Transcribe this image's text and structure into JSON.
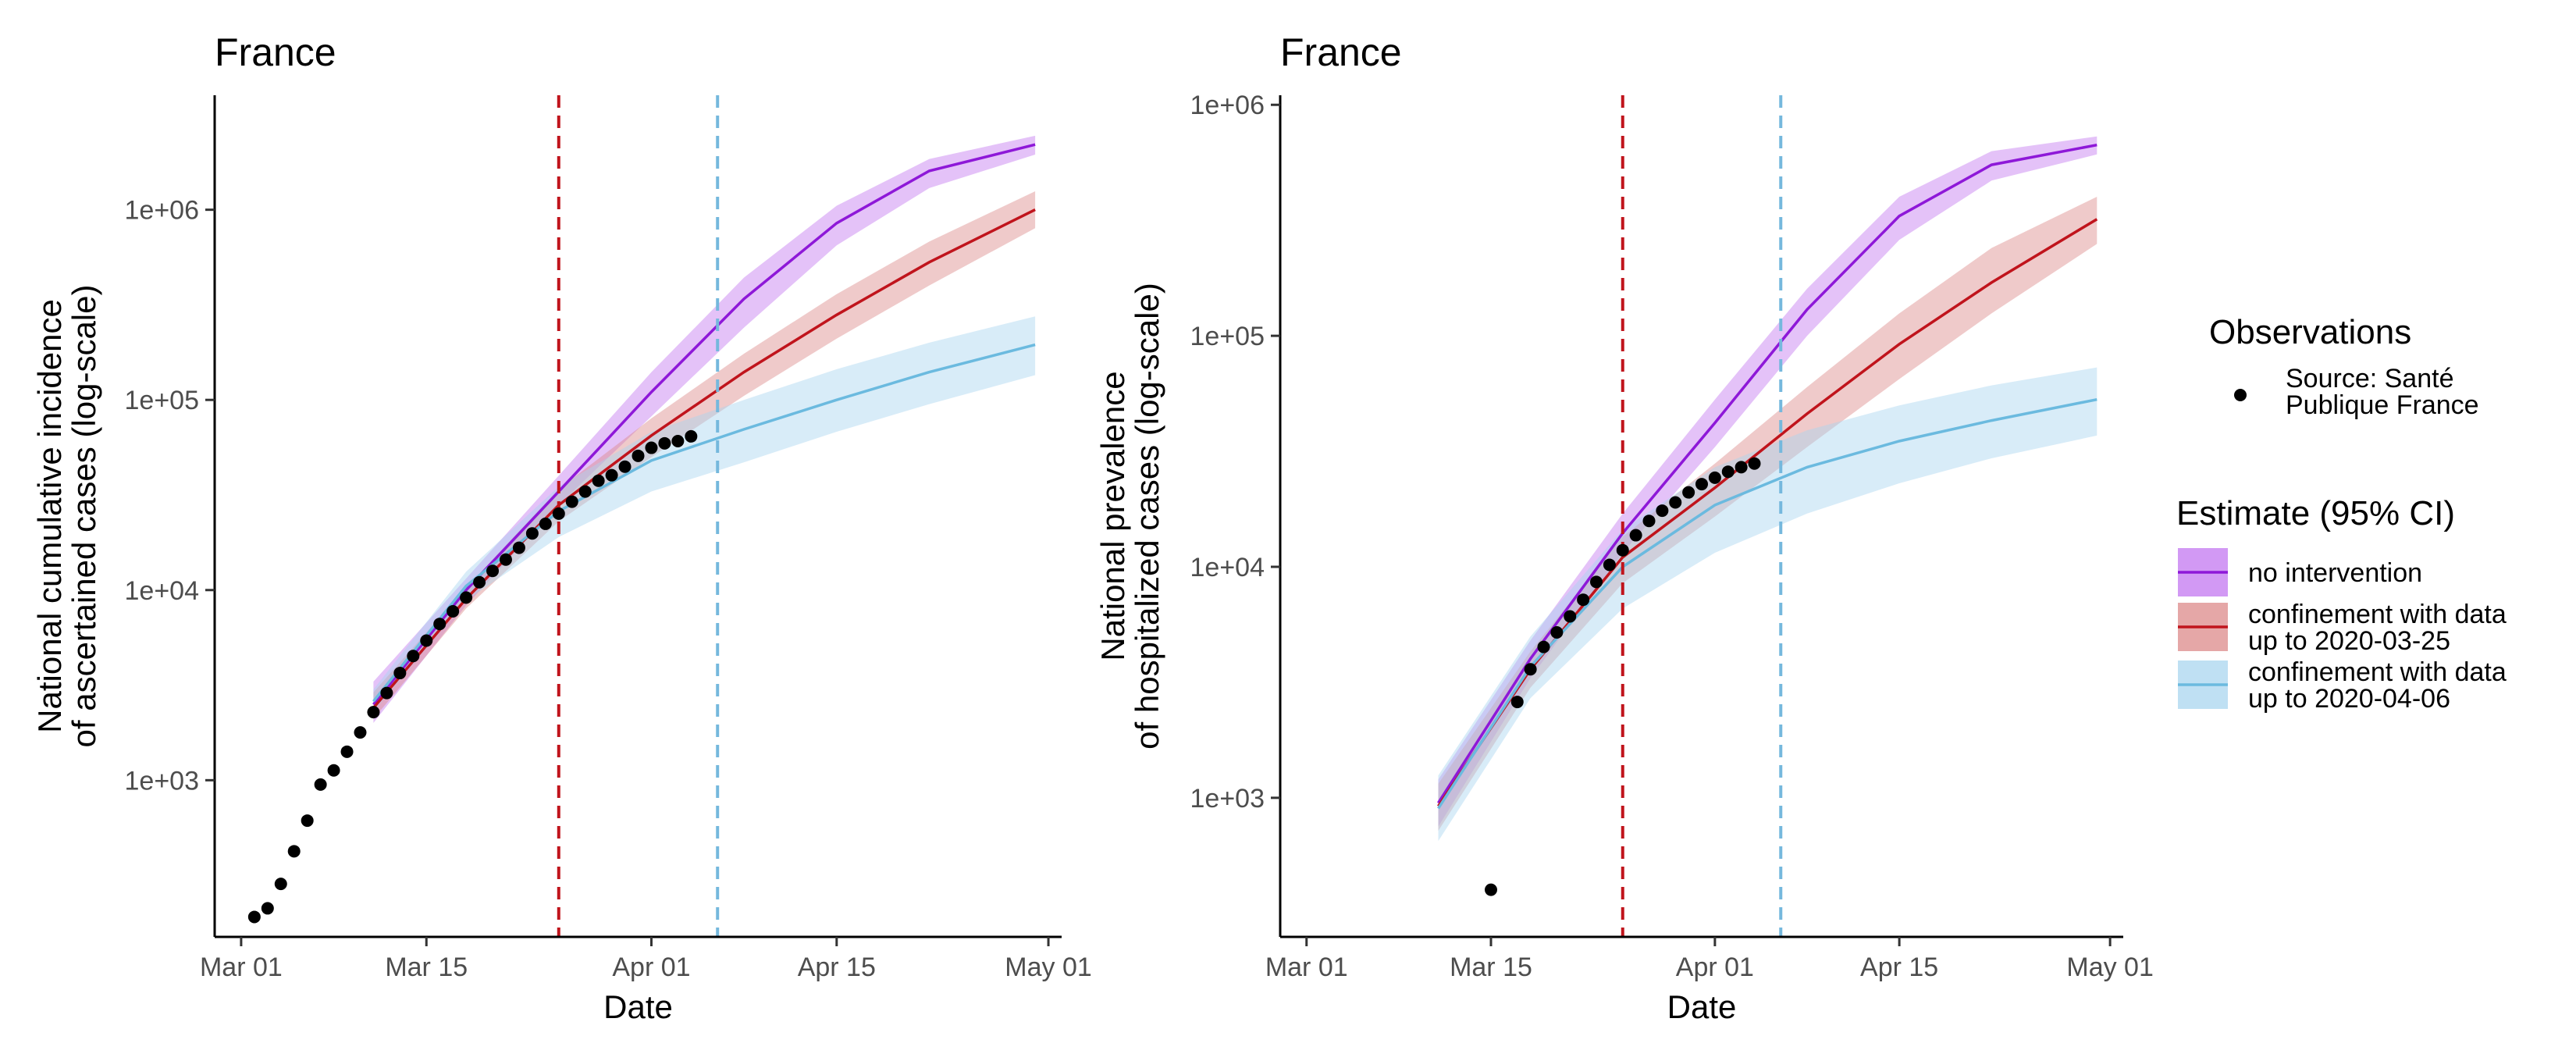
{
  "chart_data": [
    {
      "type": "line",
      "title": "France",
      "xlabel": "Date",
      "ylabel_lines": [
        "National cumulative incidence",
        "of ascertained cases (log-scale)"
      ],
      "yscale": "log10",
      "xlim": [
        "2020-02-28",
        "2020-05-02"
      ],
      "ylim": [
        150,
        4000000
      ],
      "x_ticks": [
        {
          "date": "2020-03-01",
          "label": "Mar 01"
        },
        {
          "date": "2020-03-15",
          "label": "Mar 15"
        },
        {
          "date": "2020-04-01",
          "label": "Apr 01"
        },
        {
          "date": "2020-04-15",
          "label": "Apr 15"
        },
        {
          "date": "2020-05-01",
          "label": "May 01"
        }
      ],
      "y_ticks": [
        {
          "value": 1000,
          "label": "1e+03"
        },
        {
          "value": 10000,
          "label": "1e+04"
        },
        {
          "value": 100000,
          "label": "1e+05"
        },
        {
          "value": 1000000,
          "label": "1e+06"
        }
      ],
      "vlines": [
        {
          "date": "2020-03-25",
          "color": "#c0141c"
        },
        {
          "date": "2020-04-06",
          "color": "#75b8dd"
        }
      ],
      "observations": {
        "series": "Source: Santé Publique France",
        "dates": [
          "2020-03-02",
          "2020-03-03",
          "2020-03-04",
          "2020-03-05",
          "2020-03-06",
          "2020-03-07",
          "2020-03-08",
          "2020-03-09",
          "2020-03-10",
          "2020-03-11",
          "2020-03-12",
          "2020-03-13",
          "2020-03-14",
          "2020-03-15",
          "2020-03-16",
          "2020-03-17",
          "2020-03-18",
          "2020-03-19",
          "2020-03-20",
          "2020-03-21",
          "2020-03-22",
          "2020-03-23",
          "2020-03-24",
          "2020-03-25",
          "2020-03-26",
          "2020-03-27",
          "2020-03-28",
          "2020-03-29",
          "2020-03-30",
          "2020-03-31",
          "2020-04-01",
          "2020-04-02",
          "2020-04-03",
          "2020-04-04"
        ],
        "values": [
          191,
          212,
          285,
          423,
          613,
          949,
          1126,
          1412,
          1784,
          2281,
          2876,
          3661,
          4499,
          5423,
          6633,
          7730,
          9134,
          10995,
          12612,
          14459,
          16689,
          19856,
          22304,
          25233,
          29155,
          32964,
          37575,
          40174,
          44550,
          50800,
          56000,
          59100,
          60700,
          64300
        ]
      },
      "series": [
        {
          "name": "no intervention",
          "color": "#8e18d8",
          "band_color": "#c377f0",
          "x": [
            "2020-03-11",
            "2020-03-18",
            "2020-03-25",
            "2020-04-01",
            "2020-04-08",
            "2020-04-15",
            "2020-04-22",
            "2020-04-30"
          ],
          "y": [
            2500,
            10000,
            33000,
            110000,
            340000,
            850000,
            1600000,
            2200000
          ],
          "lower": [
            2000,
            8300,
            28000,
            82000,
            240000,
            650000,
            1300000,
            1950000
          ],
          "upper": [
            3300,
            11500,
            40000,
            140000,
            440000,
            1050000,
            1850000,
            2450000
          ]
        },
        {
          "name": "confinement with data up to 2020-03-25",
          "color": "#c0141c",
          "band_color": "#dc8a8a",
          "x": [
            "2020-03-11",
            "2020-03-18",
            "2020-03-25",
            "2020-04-01",
            "2020-04-08",
            "2020-04-15",
            "2020-04-22",
            "2020-04-30"
          ],
          "y": [
            2400,
            9000,
            28000,
            65000,
            140000,
            280000,
            530000,
            1000000
          ],
          "lower": [
            2100,
            8000,
            23000,
            50000,
            105000,
            210000,
            400000,
            800000
          ],
          "upper": [
            2900,
            10300,
            34000,
            80000,
            175000,
            360000,
            680000,
            1250000
          ]
        },
        {
          "name": "confinement with data up to 2020-04-06",
          "color": "#6bbadf",
          "band_color": "#a9d5ef",
          "x": [
            "2020-03-11",
            "2020-03-18",
            "2020-03-25",
            "2020-04-01",
            "2020-04-08",
            "2020-04-15",
            "2020-04-22",
            "2020-04-30"
          ],
          "y": [
            2600,
            10500,
            26000,
            48000,
            70000,
            100000,
            140000,
            195000
          ],
          "lower": [
            2300,
            8800,
            19000,
            33000,
            47000,
            68000,
            95000,
            135000
          ],
          "upper": [
            3000,
            12500,
            35000,
            68000,
            100000,
            145000,
            200000,
            275000
          ]
        }
      ]
    },
    {
      "type": "line",
      "title": "France",
      "xlabel": "Date",
      "ylabel_lines": [
        "National prevalence",
        "of hospitalized cases (log-scale)"
      ],
      "yscale": "log10",
      "xlim": [
        "2020-02-28",
        "2020-05-02"
      ],
      "ylim": [
        250,
        1100000
      ],
      "x_ticks": [
        {
          "date": "2020-03-01",
          "label": "Mar 01"
        },
        {
          "date": "2020-03-15",
          "label": "Mar 15"
        },
        {
          "date": "2020-04-01",
          "label": "Apr 01"
        },
        {
          "date": "2020-04-15",
          "label": "Apr 15"
        },
        {
          "date": "2020-05-01",
          "label": "May 01"
        }
      ],
      "y_ticks": [
        {
          "value": 1000,
          "label": "1e+03"
        },
        {
          "value": 10000,
          "label": "1e+04"
        },
        {
          "value": 100000,
          "label": "1e+05"
        },
        {
          "value": 1000000,
          "label": "1e+06"
        }
      ],
      "vlines": [
        {
          "date": "2020-03-25",
          "color": "#c0141c"
        },
        {
          "date": "2020-04-06",
          "color": "#75b8dd"
        }
      ],
      "observations": {
        "series": "Source: Santé Publique France",
        "dates": [
          "2020-03-15",
          "2020-03-17",
          "2020-03-18",
          "2020-03-19",
          "2020-03-20",
          "2020-03-21",
          "2020-03-22",
          "2020-03-23",
          "2020-03-24",
          "2020-03-25",
          "2020-03-26",
          "2020-03-27",
          "2020-03-28",
          "2020-03-29",
          "2020-03-30",
          "2020-03-31",
          "2020-04-01",
          "2020-04-02",
          "2020-04-03",
          "2020-04-04"
        ],
        "values": [
          400,
          2600,
          3600,
          4500,
          5200,
          6100,
          7200,
          8600,
          10200,
          11800,
          13700,
          15800,
          17500,
          19000,
          21000,
          22800,
          24300,
          25800,
          27000,
          28000
        ]
      },
      "series": [
        {
          "name": "no intervention",
          "color": "#8e18d8",
          "band_color": "#c377f0",
          "x": [
            "2020-03-11",
            "2020-03-18",
            "2020-03-25",
            "2020-04-01",
            "2020-04-08",
            "2020-04-15",
            "2020-04-22",
            "2020-04-30"
          ],
          "y": [
            950,
            4000,
            14000,
            42000,
            130000,
            330000,
            550000,
            670000
          ],
          "lower": [
            750,
            3300,
            11500,
            33000,
            100000,
            260000,
            470000,
            610000
          ],
          "upper": [
            1200,
            4800,
            17000,
            53000,
            160000,
            400000,
            630000,
            730000
          ]
        },
        {
          "name": "confinement with data up to 2020-03-25",
          "color": "#c0141c",
          "band_color": "#dc8a8a",
          "x": [
            "2020-03-11",
            "2020-03-18",
            "2020-03-25",
            "2020-04-01",
            "2020-04-08",
            "2020-04-15",
            "2020-04-22",
            "2020-04-30"
          ],
          "y": [
            920,
            3600,
            11000,
            22000,
            46000,
            92000,
            170000,
            320000
          ],
          "lower": [
            720,
            3000,
            8500,
            16500,
            33000,
            65000,
            125000,
            250000
          ],
          "upper": [
            1150,
            4300,
            13500,
            28000,
            60000,
            125000,
            240000,
            400000
          ]
        },
        {
          "name": "confinement with data up to 2020-04-06",
          "color": "#6bbadf",
          "band_color": "#a9d5ef",
          "x": [
            "2020-03-11",
            "2020-03-18",
            "2020-03-25",
            "2020-04-01",
            "2020-04-08",
            "2020-04-15",
            "2020-04-22",
            "2020-04-30"
          ],
          "y": [
            900,
            3700,
            10000,
            18500,
            27000,
            35000,
            43000,
            53000
          ],
          "lower": [
            650,
            2700,
            6600,
            11500,
            17000,
            23000,
            29500,
            37000
          ],
          "upper": [
            1250,
            5000,
            14500,
            27000,
            39000,
            50000,
            61000,
            73000
          ]
        }
      ]
    }
  ],
  "legend": {
    "observations_title": "Observations",
    "observations_label_lines": [
      "Source: Santé",
      "Publique France"
    ],
    "estimate_title": "Estimate (95% CI)",
    "entries": [
      {
        "label_lines": [
          "no intervention"
        ],
        "color": "#8e18d8",
        "band_color": "#c377f0"
      },
      {
        "label_lines": [
          "confinement with data",
          "up to 2020-03-25"
        ],
        "color": "#c0141c",
        "band_color": "#dc8a8a"
      },
      {
        "label_lines": [
          "confinement with data",
          "up to 2020-04-06"
        ],
        "color": "#6bbadf",
        "band_color": "#a9d5ef"
      }
    ]
  }
}
